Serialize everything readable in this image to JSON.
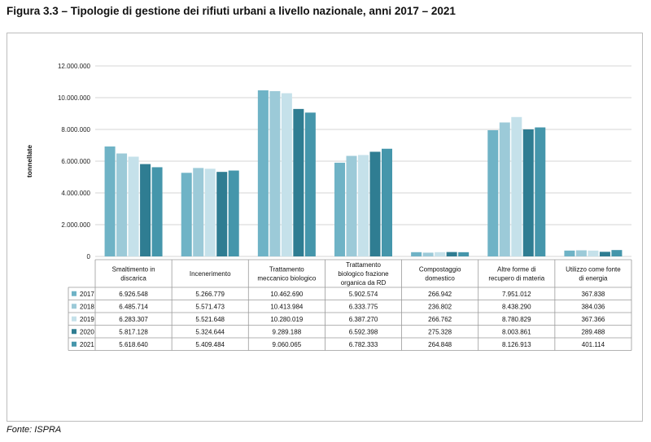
{
  "title": "Figura 3.3 – Tipologie di gestione dei rifiuti urbani a livello nazionale, anni 2017 – 2021",
  "source": "Fonte: ISPRA",
  "chart_data": {
    "type": "bar",
    "title": "Figura 3.3 – Tipologie di gestione dei rifiuti urbani a livello nazionale, anni 2017 – 2021",
    "xlabel": "",
    "ylabel": "tonnellate",
    "ylim": [
      0,
      12000000
    ],
    "yticks": [
      0,
      2000000,
      4000000,
      6000000,
      8000000,
      10000000,
      12000000
    ],
    "ytick_labels": [
      "0",
      "2.000.000",
      "4.000.000",
      "6.000.000",
      "8.000.000",
      "10.000.000",
      "12.000.000"
    ],
    "grid": true,
    "legend": "table-below",
    "categories": [
      [
        "Smaltimento in",
        "discarica"
      ],
      [
        "Incenerimento"
      ],
      [
        "Trattamento",
        "meccanico biologico"
      ],
      [
        "Trattamento",
        "biologico frazione",
        "organica da RD"
      ],
      [
        "Compostaggio",
        "domestico"
      ],
      [
        "Altre forme di",
        "recupero di materia"
      ],
      [
        "Utilizzo come fonte",
        "di energia"
      ]
    ],
    "series": [
      {
        "name": "2017",
        "color": "#6fb3c6",
        "values": [
          6926548,
          5266779,
          10462690,
          5902574,
          266942,
          7951012,
          367838
        ],
        "labels": [
          "6.926.548",
          "5.266.779",
          "10.462.690",
          "5.902.574",
          "266.942",
          "7.951.012",
          "367.838"
        ]
      },
      {
        "name": "2018",
        "color": "#9ccad8",
        "values": [
          6485714,
          5571473,
          10413984,
          6333775,
          236802,
          8438290,
          384036
        ],
        "labels": [
          "6.485.714",
          "5.571.473",
          "10.413.984",
          "6.333.775",
          "236.802",
          "8.438.290",
          "384.036"
        ]
      },
      {
        "name": "2019",
        "color": "#c5e1ea",
        "values": [
          6283307,
          5521648,
          10280019,
          6387270,
          266762,
          8780829,
          367366
        ],
        "labels": [
          "6.283.307",
          "5.521.648",
          "10.280.019",
          "6.387.270",
          "266.762",
          "8.780.829",
          "367.366"
        ]
      },
      {
        "name": "2020",
        "color": "#2f7d92",
        "values": [
          5817128,
          5324644,
          9289188,
          6592398,
          275328,
          8003861,
          289488
        ],
        "labels": [
          "5.817.128",
          "5.324.644",
          "9.289.188",
          "6.592.398",
          "275.328",
          "8.003.861",
          "289.488"
        ]
      },
      {
        "name": "2021",
        "color": "#4596ab",
        "values": [
          5618640,
          5409484,
          9060065,
          6782333,
          264848,
          8126913,
          401114
        ],
        "labels": [
          "5.618.640",
          "5.409.484",
          "9.060.065",
          "6.782.333",
          "264.848",
          "8.126.913",
          "401.114"
        ]
      }
    ]
  }
}
